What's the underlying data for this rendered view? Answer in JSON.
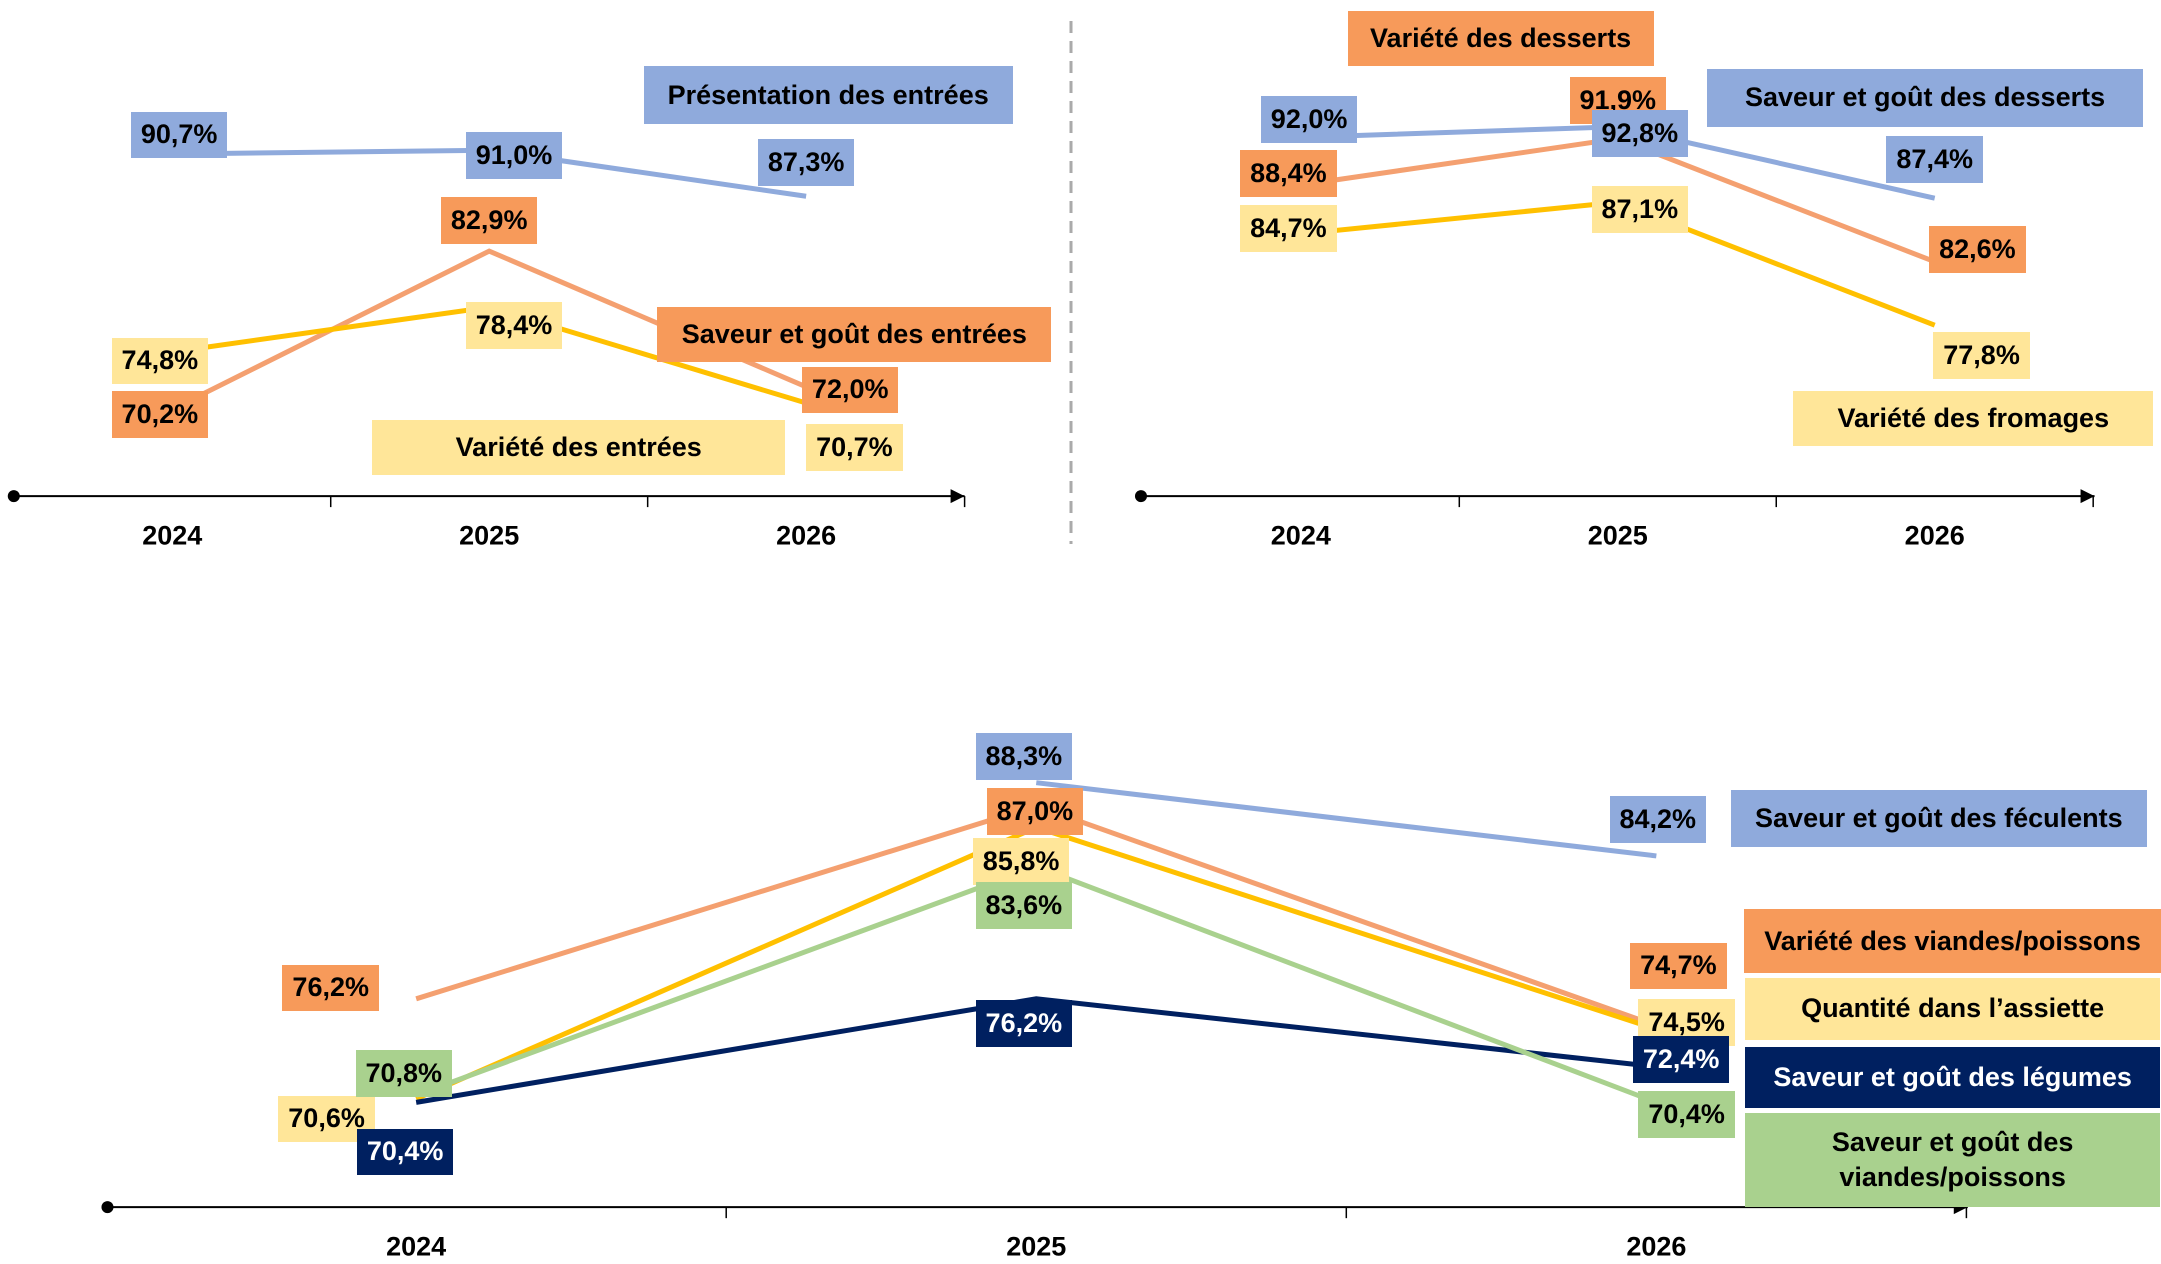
{
  "chart_data": [
    {
      "type": "line",
      "categories": [
        "2024",
        "2025",
        "2026"
      ],
      "series": [
        {
          "name": "Présentation des entrées",
          "color": "#8faadc",
          "label_color": "#8faadc",
          "values": [
            90.7,
            91.0,
            87.3
          ],
          "value_labels": [
            "90,7%",
            "91,0%",
            "87,3%"
          ]
        },
        {
          "name": "Saveur et goût des entrées",
          "color": "#f4a070",
          "label_color": "#f79a5a",
          "values": [
            70.2,
            82.9,
            72.0
          ],
          "value_labels": [
            "70,2%",
            "82,9%",
            "72,0%"
          ]
        },
        {
          "name": "Variété des entrées",
          "color": "#ffc000",
          "label_color": "#ffe699",
          "values": [
            74.8,
            78.4,
            70.7
          ],
          "value_labels": [
            "74,8%",
            "78,4%",
            "70,7%"
          ]
        }
      ]
    },
    {
      "type": "line",
      "categories": [
        "2024",
        "2025",
        "2026"
      ],
      "series": [
        {
          "name": "Variété des desserts",
          "color": "#f4a070",
          "label_color": "#f79a5a",
          "values": [
            88.4,
            91.9,
            82.6
          ],
          "value_labels": [
            "88,4%",
            "91,9%",
            "82,6%"
          ]
        },
        {
          "name": "Saveur et goût des desserts",
          "color": "#8faadc",
          "label_color": "#8faadc",
          "values": [
            92.0,
            92.8,
            87.4
          ],
          "value_labels": [
            "92,0%",
            "92,8%",
            "87,4%"
          ]
        },
        {
          "name": "Variété des fromages",
          "color": "#ffc000",
          "label_color": "#ffe699",
          "values": [
            84.7,
            87.1,
            77.8
          ],
          "value_labels": [
            "84,7%",
            "87,1%",
            "77,8%"
          ]
        }
      ]
    },
    {
      "type": "line",
      "categories": [
        "2024",
        "2025",
        "2026"
      ],
      "series": [
        {
          "name": "Saveur et goût des féculents",
          "color": "#8faadc",
          "label_color": "#8faadc",
          "values": [
            null,
            88.3,
            84.2
          ],
          "value_labels": [
            null,
            "88,3%",
            "84,2%"
          ]
        },
        {
          "name": "Variété des viandes/poissons",
          "color": "#f4a070",
          "label_color": "#f79a5a",
          "values": [
            76.2,
            87.0,
            74.7
          ],
          "value_labels": [
            "76,2%",
            "87,0%",
            "74,7%"
          ]
        },
        {
          "name": "Quantité dans l’assiette",
          "color": "#ffc000",
          "label_color": "#ffe699",
          "values": [
            70.6,
            85.8,
            74.5
          ],
          "value_labels": [
            "70,6%",
            "85,8%",
            "74,5%"
          ]
        },
        {
          "name": "Saveur et goût des légumes",
          "color": "#002060",
          "label_color": "#002060",
          "values": [
            70.4,
            76.2,
            72.4
          ],
          "value_labels": [
            "70,4%",
            "76,2%",
            "72,4%"
          ]
        },
        {
          "name": "Saveur et goût des viandes/poissons",
          "color": "#a9d18e",
          "label_color": "#a9d18e",
          "values": [
            70.8,
            83.6,
            70.4
          ],
          "value_labels": [
            "70,8%",
            "83,6%",
            "70,4%"
          ]
        }
      ]
    }
  ]
}
